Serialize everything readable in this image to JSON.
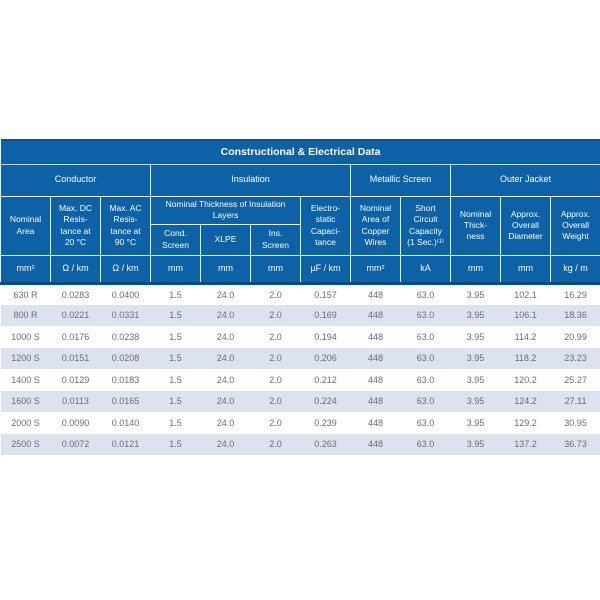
{
  "table": {
    "title": "Constructional & Electrical Data",
    "groups": [
      {
        "label": "Conductor",
        "span": 3
      },
      {
        "label": "Insulation",
        "span": 4
      },
      {
        "label": "Metallic Screen",
        "span": 2
      },
      {
        "label": "Outer Jacket",
        "span": 3
      }
    ],
    "subheaders": {
      "nominal_area": "Nominal\nArea",
      "max_dc": "Max. DC\nResis-\ntance at\n20 °C",
      "max_ac": "Max. AC\nResis-\ntance at\n90 °C",
      "insulation_thickness_group": "Nominal Thickness of Insulation\nLayers",
      "cond_screen": "Cond.\nScreen",
      "xlpe": "XLPE",
      "ins_screen": "Ins.\nScreen",
      "electrostatic": "Electro-\nstatic\nCapaci-\ntance",
      "copper_wires": "Nominal\nArea of\nCopper\nWires",
      "short_circuit": "Short\nCircuit\nCapacity\n(1 Sec.)⁽¹⁾",
      "jacket_thickness": "Nominal\nThick-\nness",
      "overall_diameter": "Approx.\nOverall\nDiameter",
      "overall_weight": "Approx.\nOverall\nWeight"
    },
    "units": [
      "mm²",
      "Ω / km",
      "Ω / km",
      "mm",
      "mm",
      "mm",
      "µF / km",
      "mm²",
      "kA",
      "mm",
      "mm",
      "kg / m"
    ],
    "rows": [
      [
        "630 R",
        "0.0283",
        "0.0400",
        "1.5",
        "24.0",
        "2.0",
        "0.157",
        "448",
        "63.0",
        "3.95",
        "102.1",
        "16.29"
      ],
      [
        "800 R",
        "0.0221",
        "0.0331",
        "1.5",
        "24.0",
        "2.0",
        "0.169",
        "448",
        "63.0",
        "3.95",
        "106.1",
        "18.36"
      ],
      [
        "1000 S",
        "0.0176",
        "0.0238",
        "1.5",
        "24.0",
        "2.0",
        "0.194",
        "448",
        "63.0",
        "3.95",
        "114.2",
        "20.99"
      ],
      [
        "1200 S",
        "0.0151",
        "0.0208",
        "1.5",
        "24.0",
        "2.0",
        "0.206",
        "448",
        "63.0",
        "3.95",
        "118.2",
        "23.23"
      ],
      [
        "1400 S",
        "0.0129",
        "0.0183",
        "1.5",
        "24.0",
        "2.0",
        "0.212",
        "448",
        "63.0",
        "3.95",
        "120.2",
        "25.27"
      ],
      [
        "1600 S",
        "0.0113",
        "0.0165",
        "1.5",
        "24.0",
        "2.0",
        "0.224",
        "448",
        "63.0",
        "3.95",
        "124.2",
        "27.11"
      ],
      [
        "2000 S",
        "0.0090",
        "0.0140",
        "1.5",
        "24.0",
        "2.0",
        "0.239",
        "448",
        "63.0",
        "3.95",
        "129.2",
        "30.95"
      ],
      [
        "2500 S",
        "0.0072",
        "0.0121",
        "1.5",
        "24.0",
        "2.0",
        "0.263",
        "448",
        "63.0",
        "3.95",
        "137.2",
        "36.73"
      ]
    ]
  },
  "colors": {
    "header_blue": "#0c61a7",
    "title_top_border": "#09538d",
    "navy_divider": "#0b4a7d",
    "stripe_lavender": "#dde2ef",
    "data_text": "#666d78",
    "cell_border": "#e9f1f8"
  }
}
